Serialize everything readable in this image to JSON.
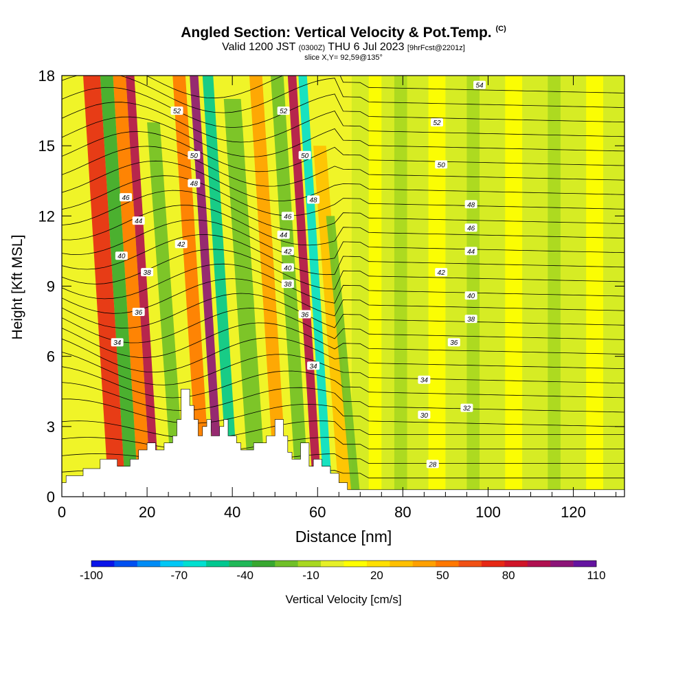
{
  "title": {
    "main": "Angled Section: Vertical Velocity & Pot.Temp.",
    "copyright": "(C)",
    "valid_prefix": "Valid 1200 JST",
    "valid_utc": "(0300Z)",
    "valid_date": "THU 6 Jul 2023",
    "forecast_tag": "[9hrFcst@2201z]",
    "slice": "slice X,Y= 92,59@135°"
  },
  "chart_data": {
    "type": "heatmap",
    "xlabel": "Distance [nm]",
    "ylabel": "Height [Kft MSL]",
    "xlim": [
      0,
      132
    ],
    "ylim": [
      0,
      18
    ],
    "x_ticks": [
      0,
      20,
      40,
      60,
      80,
      100,
      120
    ],
    "y_ticks": [
      0,
      3,
      6,
      9,
      12,
      15,
      18
    ],
    "terrain": {
      "x": [
        0,
        1,
        1,
        5,
        5,
        9,
        9,
        13,
        13,
        16,
        16,
        18,
        18,
        20,
        20,
        22,
        22,
        24,
        24,
        26,
        26,
        27,
        27,
        28,
        28,
        30,
        30,
        31,
        31,
        32,
        32,
        33,
        33,
        34,
        34,
        35,
        35,
        37,
        37,
        38,
        38,
        39,
        39,
        41,
        41,
        42,
        42,
        45,
        45,
        48,
        48,
        50,
        50,
        52,
        52,
        53,
        53,
        54,
        54,
        56,
        56,
        58,
        58,
        59,
        59,
        61,
        61,
        63,
        63,
        65,
        65,
        67,
        67,
        70,
        70,
        132
      ],
      "height": [
        0.6,
        0.6,
        0.9,
        0.9,
        1.2,
        1.2,
        1.6,
        1.6,
        1.3,
        1.3,
        1.6,
        1.6,
        2.0,
        2.0,
        2.3,
        2.3,
        2.0,
        2.0,
        2.3,
        2.3,
        2.6,
        2.6,
        3.3,
        3.3,
        4.6,
        4.6,
        3.9,
        3.9,
        3.3,
        3.3,
        2.6,
        2.6,
        3.0,
        3.0,
        3.3,
        3.3,
        2.6,
        2.6,
        3.0,
        3.0,
        3.3,
        3.3,
        2.6,
        2.6,
        2.3,
        2.3,
        2.0,
        2.0,
        2.3,
        2.3,
        2.6,
        2.6,
        3.3,
        3.3,
        2.6,
        2.6,
        1.9,
        1.9,
        1.6,
        1.6,
        2.3,
        2.3,
        1.3,
        1.3,
        1.6,
        1.6,
        1.3,
        1.3,
        1.0,
        1.0,
        0.6,
        0.6,
        0.3,
        0.3,
        0.3,
        0.3
      ]
    },
    "vertical_velocity_bands": [
      {
        "x": 5,
        "w": 4,
        "value": 60,
        "top": 18
      },
      {
        "x": 12,
        "w": 3,
        "value": 45,
        "top": 18
      },
      {
        "x": 9,
        "w": 3,
        "value": -35,
        "top": 18
      },
      {
        "x": 15,
        "w": 2,
        "value": 80,
        "top": 18
      },
      {
        "x": 20,
        "w": 3,
        "value": -30,
        "top": 16
      },
      {
        "x": 26,
        "w": 3,
        "value": 45,
        "top": 18
      },
      {
        "x": 30,
        "w": 2,
        "value": 90,
        "top": 18
      },
      {
        "x": 33,
        "w": 2.5,
        "value": -60,
        "top": 18
      },
      {
        "x": 38,
        "w": 4,
        "value": -30,
        "top": 17
      },
      {
        "x": 44,
        "w": 3,
        "value": 30,
        "top": 18
      },
      {
        "x": 49,
        "w": 3,
        "value": -30,
        "top": 18
      },
      {
        "x": 53,
        "w": 2,
        "value": 85,
        "top": 18
      },
      {
        "x": 55.5,
        "w": 2,
        "value": -70,
        "top": 18
      },
      {
        "x": 59,
        "w": 3,
        "value": 25,
        "top": 15
      },
      {
        "x": 62,
        "w": 2,
        "value": -25,
        "top": 12
      },
      {
        "x": 72,
        "w": 3,
        "value": 5,
        "top": 18
      },
      {
        "x": 78,
        "w": 3,
        "value": -15,
        "top": 18
      },
      {
        "x": 86,
        "w": 4,
        "value": 5,
        "top": 18
      },
      {
        "x": 95,
        "w": 3,
        "value": -15,
        "top": 18
      },
      {
        "x": 104,
        "w": 4,
        "value": 5,
        "top": 18
      },
      {
        "x": 114,
        "w": 3,
        "value": -15,
        "top": 18
      },
      {
        "x": 123,
        "w": 4,
        "value": 5,
        "top": 18
      }
    ],
    "potential_temperature_labels": [
      {
        "text": "54",
        "x": 98,
        "y": 17.6
      },
      {
        "text": "52",
        "x": 27,
        "y": 16.5
      },
      {
        "text": "52",
        "x": 52,
        "y": 16.5
      },
      {
        "text": "52",
        "x": 88,
        "y": 16.0
      },
      {
        "text": "50",
        "x": 31,
        "y": 14.6
      },
      {
        "text": "50",
        "x": 57,
        "y": 14.6
      },
      {
        "text": "50",
        "x": 89,
        "y": 14.2
      },
      {
        "text": "48",
        "x": 31,
        "y": 13.4
      },
      {
        "text": "48",
        "x": 59,
        "y": 12.7
      },
      {
        "text": "48",
        "x": 96,
        "y": 12.5
      },
      {
        "text": "46",
        "x": 15,
        "y": 12.8
      },
      {
        "text": "46",
        "x": 53,
        "y": 12.0
      },
      {
        "text": "46",
        "x": 96,
        "y": 11.5
      },
      {
        "text": "44",
        "x": 18,
        "y": 11.8
      },
      {
        "text": "44",
        "x": 52,
        "y": 11.2
      },
      {
        "text": "44",
        "x": 96,
        "y": 10.5
      },
      {
        "text": "42",
        "x": 28,
        "y": 10.8
      },
      {
        "text": "42",
        "x": 53,
        "y": 10.5
      },
      {
        "text": "42",
        "x": 89,
        "y": 9.6
      },
      {
        "text": "40",
        "x": 14,
        "y": 10.3
      },
      {
        "text": "40",
        "x": 53,
        "y": 9.8
      },
      {
        "text": "40",
        "x": 96,
        "y": 8.6
      },
      {
        "text": "38",
        "x": 20,
        "y": 9.6
      },
      {
        "text": "38",
        "x": 53,
        "y": 9.1
      },
      {
        "text": "38",
        "x": 96,
        "y": 7.6
      },
      {
        "text": "36",
        "x": 18,
        "y": 7.9
      },
      {
        "text": "36",
        "x": 57,
        "y": 7.8
      },
      {
        "text": "36",
        "x": 92,
        "y": 6.6
      },
      {
        "text": "34",
        "x": 13,
        "y": 6.6
      },
      {
        "text": "34",
        "x": 59,
        "y": 5.6
      },
      {
        "text": "34",
        "x": 85,
        "y": 5.0
      },
      {
        "text": "32",
        "x": 95,
        "y": 3.8
      },
      {
        "text": "30",
        "x": 85,
        "y": 3.5
      },
      {
        "text": "28",
        "x": 87,
        "y": 1.4
      }
    ],
    "colorbar": {
      "title": "Vertical Velocity [cm/s]",
      "tick_labels": [
        "-100",
        "-70",
        "-40",
        "-10",
        "20",
        "50",
        "80",
        "110"
      ],
      "colors": [
        "#0a14e8",
        "#0050f0",
        "#008cf5",
        "#00c8f5",
        "#00e0d0",
        "#00c890",
        "#20b858",
        "#38a830",
        "#70c028",
        "#a8d820",
        "#e6f028",
        "#ffff00",
        "#ffe000",
        "#ffc000",
        "#ffa000",
        "#ff7800",
        "#f05014",
        "#e62814",
        "#d01428",
        "#b01050",
        "#8c1478",
        "#6414a0"
      ]
    }
  }
}
